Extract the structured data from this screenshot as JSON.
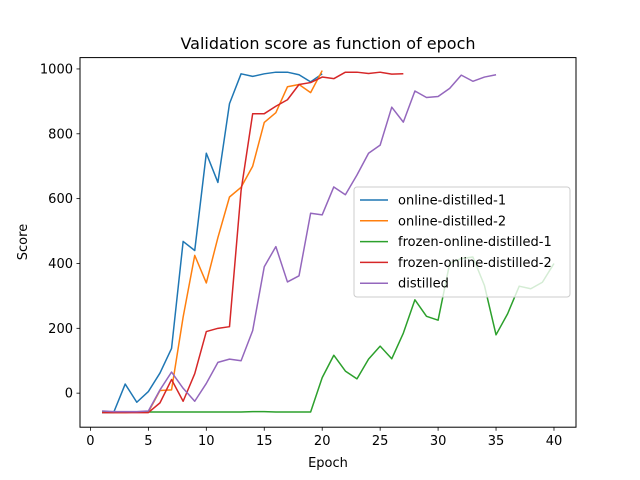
{
  "chart_data": {
    "type": "line",
    "title": "Validation score as function of epoch",
    "xlabel": "Epoch",
    "ylabel": "Score",
    "xlim": [
      -0.9,
      41.9
    ],
    "ylim": [
      -105,
      1035
    ],
    "xticks": [
      0,
      5,
      10,
      15,
      20,
      25,
      30,
      35,
      40
    ],
    "yticks": [
      0,
      200,
      400,
      600,
      800,
      1000
    ],
    "grid": false,
    "legend_position": "center-right",
    "series": [
      {
        "name": "online-distilled-1",
        "color": "#1f77b4",
        "x": [
          1,
          2,
          3,
          4,
          5,
          6,
          7,
          8,
          9,
          10,
          11,
          12,
          13,
          14,
          15,
          16,
          17,
          18,
          19,
          20
        ],
        "y": [
          -60,
          -60,
          28,
          -28,
          5,
          62,
          138,
          468,
          440,
          740,
          650,
          893,
          985,
          977,
          985,
          990,
          990,
          982,
          960,
          985
        ]
      },
      {
        "name": "online-distilled-2",
        "color": "#ff7f0e",
        "x": [
          1,
          2,
          3,
          4,
          5,
          6,
          7,
          8,
          9,
          10,
          11,
          12,
          13,
          14,
          15,
          16,
          17,
          18,
          19,
          20
        ],
        "y": [
          -58,
          -60,
          -60,
          -58,
          -58,
          8,
          10,
          235,
          425,
          340,
          480,
          605,
          635,
          700,
          835,
          865,
          945,
          952,
          927,
          995
        ]
      },
      {
        "name": "frozen-online-distilled-1",
        "color": "#2ca02c",
        "x": [
          1,
          2,
          3,
          4,
          5,
          6,
          7,
          8,
          9,
          10,
          11,
          12,
          13,
          14,
          15,
          16,
          17,
          18,
          19,
          20,
          21,
          22,
          23,
          24,
          25,
          26,
          27,
          28,
          29,
          30,
          31,
          32,
          33,
          34,
          35,
          36,
          37,
          38,
          39,
          40
        ],
        "y": [
          -58,
          -58,
          -58,
          -58,
          -58,
          -58,
          -58,
          -58,
          -58,
          -58,
          -58,
          -58,
          -58,
          -57,
          -57,
          -58,
          -58,
          -58,
          -58,
          48,
          117,
          68,
          44,
          105,
          145,
          106,
          185,
          288,
          237,
          225,
          400,
          415,
          420,
          332,
          180,
          245,
          330,
          322,
          342,
          400
        ]
      },
      {
        "name": "frozen-online-distilled-2",
        "color": "#d62728",
        "x": [
          1,
          2,
          3,
          4,
          5,
          6,
          7,
          8,
          9,
          10,
          11,
          12,
          13,
          14,
          15,
          16,
          17,
          18,
          19,
          20,
          21,
          22,
          23,
          24,
          25,
          26,
          27
        ],
        "y": [
          -60,
          -60,
          -60,
          -60,
          -60,
          -30,
          42,
          -25,
          60,
          190,
          200,
          205,
          625,
          862,
          862,
          885,
          905,
          952,
          958,
          975,
          970,
          990,
          990,
          986,
          990,
          984,
          985
        ]
      },
      {
        "name": "distilled",
        "color": "#9467bd",
        "x": [
          1,
          2,
          3,
          4,
          5,
          6,
          7,
          8,
          9,
          10,
          11,
          12,
          13,
          14,
          15,
          16,
          17,
          18,
          19,
          20,
          21,
          22,
          23,
          24,
          25,
          26,
          27,
          28,
          29,
          30,
          31,
          32,
          33,
          34,
          35
        ],
        "y": [
          -55,
          -57,
          -57,
          -57,
          -55,
          10,
          65,
          15,
          -25,
          30,
          95,
          105,
          100,
          193,
          390,
          452,
          343,
          362,
          555,
          550,
          636,
          612,
          673,
          740,
          765,
          882,
          836,
          932,
          912,
          915,
          940,
          981,
          962,
          975,
          982
        ]
      }
    ]
  }
}
